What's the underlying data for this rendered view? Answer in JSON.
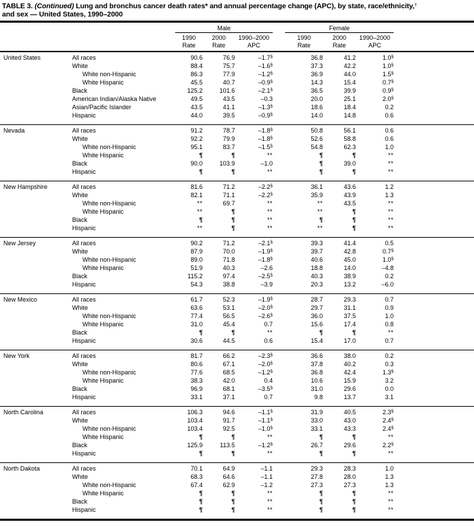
{
  "title": {
    "prefix": "TABLE 3.",
    "continued": "(Continued)",
    "line1_rest": "Lung and bronchus cancer death rates* and annual percentage change (APC), by state, race/ethnicity,†",
    "line2": "and sex — United States, 1990–2000"
  },
  "header": {
    "male_label": "Male",
    "female_label": "Female",
    "sub_columns": [
      {
        "line1": "1990",
        "line2": "Rate"
      },
      {
        "line1": "2000",
        "line2": "Rate"
      },
      {
        "line1": "1990–2000",
        "line2": "APC"
      }
    ]
  },
  "colors": {
    "ink": "#000000",
    "paper": "#ffffff"
  },
  "sections": [
    {
      "state": "United States",
      "rows": [
        {
          "label": "All races",
          "indent": 0,
          "values": [
            "90.6",
            "76.9",
            "–1.7§",
            "36.8",
            "41.2",
            "1.0§"
          ]
        },
        {
          "label": "White",
          "indent": 0,
          "values": [
            "88.4",
            "75.7",
            "–1.6§",
            "37.3",
            "42.2",
            "1.0§"
          ]
        },
        {
          "label": "White non-Hispanic",
          "indent": 1,
          "values": [
            "86.3",
            "77.9",
            "–1.2§",
            "36.9",
            "44.0",
            "1.5§"
          ]
        },
        {
          "label": "White Hispanic",
          "indent": 1,
          "values": [
            "45.5",
            "40.7",
            "–0.9§",
            "14.3",
            "15.4",
            "0.7§"
          ]
        },
        {
          "label": "Black",
          "indent": 0,
          "values": [
            "125.2",
            "101.6",
            "–2.1§",
            "36.5",
            "39.9",
            "0.9§"
          ]
        },
        {
          "label": "American Indian/Alaska Native",
          "indent": 0,
          "values": [
            "49.5",
            "43.5",
            "–0.3",
            "20.0",
            "25.1",
            "2.0§"
          ]
        },
        {
          "label": "Asian/Pacific Islander",
          "indent": 0,
          "values": [
            "43.5",
            "41.1",
            "–1.3§",
            "18.6",
            "18.4",
            "0.2"
          ]
        },
        {
          "label": "Hispanic",
          "indent": 0,
          "values": [
            "44.0",
            "39.5",
            "–0.9§",
            "14.0",
            "14.8",
            "0.6"
          ]
        }
      ]
    },
    {
      "state": "Nevada",
      "rows": [
        {
          "label": "All races",
          "indent": 0,
          "values": [
            "91.2",
            "78.7",
            "–1.8§",
            "50.8",
            "56.1",
            "0.6"
          ]
        },
        {
          "label": "White",
          "indent": 0,
          "values": [
            "92.2",
            "79.9",
            "–1.8§",
            "52.6",
            "58.8",
            "0.6"
          ]
        },
        {
          "label": "White non-Hispanic",
          "indent": 1,
          "values": [
            "95.1",
            "83.7",
            "–1.5§",
            "54.8",
            "62.3",
            "1.0"
          ]
        },
        {
          "label": "White Hispanic",
          "indent": 1,
          "values": [
            "¶",
            "¶",
            "**",
            "¶",
            "¶",
            "**"
          ]
        },
        {
          "label": "Black",
          "indent": 0,
          "values": [
            "90.0",
            "103.9",
            "–1.0",
            "¶",
            "39.0",
            "**"
          ]
        },
        {
          "label": "Hispanic",
          "indent": 0,
          "values": [
            "¶",
            "¶",
            "**",
            "¶",
            "¶",
            "**"
          ]
        }
      ]
    },
    {
      "state": "New Hampshire",
      "rows": [
        {
          "label": "All races",
          "indent": 0,
          "values": [
            "81.6",
            "71.2",
            "–2.2§",
            "36.1",
            "43.6",
            "1.2"
          ]
        },
        {
          "label": "White",
          "indent": 0,
          "values": [
            "82.1",
            "71.1",
            "–2.2§",
            "35.9",
            "43.9",
            "1.3"
          ]
        },
        {
          "label": "White non-Hispanic",
          "indent": 1,
          "values": [
            "**",
            "69.7",
            "**",
            "**",
            "43.5",
            "**"
          ]
        },
        {
          "label": "White Hispanic",
          "indent": 1,
          "values": [
            "**",
            "¶",
            "**",
            "**",
            "¶",
            "**"
          ]
        },
        {
          "label": "Black",
          "indent": 0,
          "values": [
            "¶",
            "¶",
            "**",
            "¶",
            "¶",
            "**"
          ]
        },
        {
          "label": "Hispanic",
          "indent": 0,
          "values": [
            "**",
            "¶",
            "**",
            "**",
            "¶",
            "**"
          ]
        }
      ]
    },
    {
      "state": "New Jersey",
      "rows": [
        {
          "label": "All races",
          "indent": 0,
          "values": [
            "90.2",
            "71.2",
            "–2.1§",
            "39.3",
            "41.4",
            "0.5"
          ]
        },
        {
          "label": "White",
          "indent": 0,
          "values": [
            "87.9",
            "70.0",
            "–1.9§",
            "39.7",
            "42.8",
            "0.7§"
          ]
        },
        {
          "label": "White non-Hispanic",
          "indent": 1,
          "values": [
            "89.0",
            "71.8",
            "–1.8§",
            "40.6",
            "45.0",
            "1.0§"
          ]
        },
        {
          "label": "White Hispanic",
          "indent": 1,
          "values": [
            "51.9",
            "40.3",
            "–2.6",
            "18.8",
            "14.0",
            "–4.8"
          ]
        },
        {
          "label": "Black",
          "indent": 0,
          "values": [
            "115.2",
            "97.4",
            "–2.5§",
            "40.3",
            "38.9",
            "0.2"
          ]
        },
        {
          "label": "Hispanic",
          "indent": 0,
          "values": [
            "54.3",
            "38.8",
            "–3.9",
            "20.3",
            "13.2",
            "–6.0"
          ]
        }
      ]
    },
    {
      "state": "New Mexico",
      "rows": [
        {
          "label": "All races",
          "indent": 0,
          "values": [
            "61.7",
            "52.3",
            "–1.9§",
            "28.7",
            "29.3",
            "0.7"
          ]
        },
        {
          "label": "White",
          "indent": 0,
          "values": [
            "63.6",
            "53.1",
            "–2.0§",
            "29.7",
            "31.1",
            "0.9"
          ]
        },
        {
          "label": "White non-Hispanic",
          "indent": 1,
          "values": [
            "77.4",
            "56.5",
            "–2.6§",
            "36.0",
            "37.5",
            "1.0"
          ]
        },
        {
          "label": "White Hispanic",
          "indent": 1,
          "values": [
            "31.0",
            "45.4",
            "0.7",
            "15.6",
            "17.4",
            "0.8"
          ]
        },
        {
          "label": "Black",
          "indent": 0,
          "values": [
            "¶",
            "¶",
            "**",
            "¶",
            "¶",
            "**"
          ]
        },
        {
          "label": "Hispanic",
          "indent": 0,
          "values": [
            "30.6",
            "44.5",
            "0.6",
            "15.4",
            "17.0",
            "0.7"
          ]
        }
      ]
    },
    {
      "state": "New York",
      "rows": [
        {
          "label": "All races",
          "indent": 0,
          "values": [
            "81.7",
            "66.2",
            "–2.3§",
            "36.6",
            "38.0",
            "0.2"
          ]
        },
        {
          "label": "White",
          "indent": 0,
          "values": [
            "80.6",
            "67.1",
            "–2.0§",
            "37.8",
            "40.2",
            "0.3"
          ]
        },
        {
          "label": "White non-Hispanic",
          "indent": 1,
          "values": [
            "77.6",
            "68.5",
            "–1.2§",
            "36.8",
            "42.4",
            "1.3§"
          ]
        },
        {
          "label": "White Hispanic",
          "indent": 1,
          "values": [
            "38.3",
            "42.0",
            "0.4",
            "10.6",
            "15.9",
            "3.2"
          ]
        },
        {
          "label": "Black",
          "indent": 0,
          "values": [
            "96.9",
            "68.1",
            "–3.5§",
            "31.0",
            "29.6",
            "0.0"
          ]
        },
        {
          "label": "Hispanic",
          "indent": 0,
          "values": [
            "33.1",
            "37.1",
            "0.7",
            "9.8",
            "13.7",
            "3.1"
          ]
        }
      ]
    },
    {
      "state": "North Carolina",
      "rows": [
        {
          "label": "All races",
          "indent": 0,
          "values": [
            "106.3",
            "94.6",
            "–1.1§",
            "31.9",
            "40.5",
            "2.3§"
          ]
        },
        {
          "label": "White",
          "indent": 0,
          "values": [
            "103.4",
            "91.7",
            "–1.1§",
            "33.0",
            "43.0",
            "2.4§"
          ]
        },
        {
          "label": "White non-Hispanic",
          "indent": 1,
          "values": [
            "103.4",
            "92.5",
            "–1.0§",
            "33.1",
            "43.3",
            "2.4§"
          ]
        },
        {
          "label": "White Hispanic",
          "indent": 1,
          "values": [
            "¶",
            "¶",
            "**",
            "¶",
            "¶",
            "**"
          ]
        },
        {
          "label": "Black",
          "indent": 0,
          "values": [
            "125.9",
            "113.5",
            "–1.2§",
            "26.7",
            "29.6",
            "2.2§"
          ]
        },
        {
          "label": "Hispanic",
          "indent": 0,
          "values": [
            "¶",
            "¶",
            "**",
            "¶",
            "¶",
            "**"
          ]
        }
      ]
    },
    {
      "state": "North Dakota",
      "rows": [
        {
          "label": "All races",
          "indent": 0,
          "values": [
            "70.1",
            "64.9",
            "–1.1",
            "29.3",
            "28.3",
            "1.0"
          ]
        },
        {
          "label": "White",
          "indent": 0,
          "values": [
            "68.3",
            "64.6",
            "–1.1",
            "27.8",
            "28.0",
            "1.3"
          ]
        },
        {
          "label": "White non-Hispanic",
          "indent": 1,
          "values": [
            "67.4",
            "62.9",
            "–1.2",
            "27.3",
            "27.3",
            "1.3"
          ]
        },
        {
          "label": "White Hispanic",
          "indent": 1,
          "values": [
            "¶",
            "¶",
            "**",
            "¶",
            "¶",
            "**"
          ]
        },
        {
          "label": "Black",
          "indent": 0,
          "values": [
            "¶",
            "¶",
            "**",
            "¶",
            "¶",
            "**"
          ]
        },
        {
          "label": "Hispanic",
          "indent": 0,
          "values": [
            "¶",
            "¶",
            "**",
            "¶",
            "¶",
            "**"
          ]
        }
      ]
    }
  ]
}
